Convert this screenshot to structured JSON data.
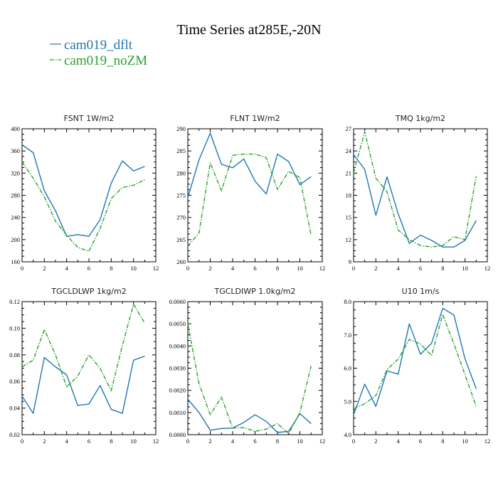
{
  "figure": {
    "title": "Time Series at285E,-20N",
    "legend": [
      {
        "label": "cam019_dflt",
        "color": "#1f77b4",
        "dash": "solid"
      },
      {
        "label": "cam019_noZM",
        "color": "#2ca02c",
        "dash": "dashdot"
      }
    ]
  },
  "chart_data": [
    {
      "type": "line",
      "title": "FSNT   1W/m2",
      "x": [
        0,
        1,
        2,
        3,
        4,
        5,
        6,
        7,
        8,
        9,
        10,
        11
      ],
      "xlim": [
        0,
        12
      ],
      "xticks": [
        0,
        2,
        4,
        6,
        8,
        10,
        12
      ],
      "ylim": [
        160,
        400
      ],
      "yticks": [
        160,
        200,
        240,
        280,
        320,
        360,
        400
      ],
      "ytick_labels": [
        "160",
        "200",
        "240",
        "280",
        "320",
        "360",
        "400"
      ],
      "series": [
        {
          "name": "cam019_dflt",
          "values": [
            371,
            357,
            288,
            252,
            206,
            209,
            206,
            236,
            302,
            342,
            324,
            332
          ]
        },
        {
          "name": "cam019_noZM",
          "values": [
            340,
            311,
            277,
            233,
            208,
            186,
            179,
            220,
            274,
            294,
            298,
            308
          ]
        }
      ]
    },
    {
      "type": "line",
      "title": "FLNT   1W/m2",
      "x": [
        0,
        1,
        2,
        3,
        4,
        5,
        6,
        7,
        8,
        9,
        10,
        11
      ],
      "xlim": [
        0,
        12
      ],
      "xticks": [
        0,
        2,
        4,
        6,
        8,
        10,
        12
      ],
      "ylim": [
        260,
        290
      ],
      "yticks": [
        260,
        265,
        270,
        275,
        280,
        285,
        290
      ],
      "ytick_labels": [
        "260",
        "265",
        "270",
        "275",
        "280",
        "285",
        "290"
      ],
      "series": [
        {
          "name": "cam019_dflt",
          "values": [
            274.5,
            283,
            289,
            282,
            281.2,
            283.2,
            278.2,
            275.3,
            284.3,
            282.6,
            277.4,
            279.2
          ]
        },
        {
          "name": "cam019_noZM",
          "values": [
            263.5,
            266.5,
            282.3,
            276,
            284,
            284.3,
            284.3,
            283.5,
            276.3,
            280.4,
            279,
            266
          ]
        }
      ]
    },
    {
      "type": "line",
      "title": "TMQ   1kg/m2",
      "x": [
        0,
        1,
        2,
        3,
        4,
        5,
        6,
        7,
        8,
        9,
        10,
        11
      ],
      "xlim": [
        0,
        12
      ],
      "xticks": [
        0,
        2,
        4,
        6,
        8,
        10,
        12
      ],
      "ylim": [
        9,
        27
      ],
      "yticks": [
        9,
        12,
        15,
        18,
        21,
        24,
        27
      ],
      "ytick_labels": [
        "9",
        "12",
        "15",
        "18",
        "21",
        "24",
        "27"
      ],
      "series": [
        {
          "name": "cam019_dflt",
          "values": [
            23.5,
            21.5,
            15.3,
            20.5,
            15.5,
            11.5,
            12.6,
            11.9,
            11.0,
            11.0,
            11.9,
            14.6
          ]
        },
        {
          "name": "cam019_noZM",
          "values": [
            21,
            26.6,
            20.3,
            18.5,
            13.3,
            12,
            11.2,
            11.0,
            11.2,
            12.4,
            12.0,
            20.6
          ]
        }
      ]
    },
    {
      "type": "line",
      "title": "TGCLDLWP   1kg/m2",
      "x": [
        0,
        1,
        2,
        3,
        4,
        5,
        6,
        7,
        8,
        9,
        10,
        11
      ],
      "xlim": [
        0,
        12
      ],
      "xticks": [
        0,
        2,
        4,
        6,
        8,
        10,
        12
      ],
      "ylim": [
        0.02,
        0.12
      ],
      "yticks": [
        0.02,
        0.04,
        0.06,
        0.08,
        0.1,
        0.12
      ],
      "ytick_labels": [
        "0.02",
        "0.04",
        "0.06",
        "0.08",
        "0.10",
        "0.12"
      ],
      "series": [
        {
          "name": "cam019_dflt",
          "values": [
            0.049,
            0.036,
            0.078,
            0.071,
            0.065,
            0.042,
            0.043,
            0.057,
            0.039,
            0.036,
            0.076,
            0.079
          ]
        },
        {
          "name": "cam019_noZM",
          "values": [
            0.071,
            0.076,
            0.099,
            0.08,
            0.056,
            0.064,
            0.08,
            0.07,
            0.053,
            0.087,
            0.118,
            0.104
          ]
        }
      ]
    },
    {
      "type": "line",
      "title": "TGCLDIWP   1.0kg/m2",
      "x": [
        0,
        1,
        2,
        3,
        4,
        5,
        6,
        7,
        8,
        9,
        10,
        11
      ],
      "xlim": [
        0,
        12
      ],
      "xticks": [
        0,
        2,
        4,
        6,
        8,
        10,
        12
      ],
      "ylim": [
        0,
        0.006
      ],
      "yticks": [
        0,
        0.001,
        0.002,
        0.003,
        0.004,
        0.005,
        0.006
      ],
      "ytick_labels": [
        "0.0000",
        "0.0010",
        "0.0020",
        "0.0030",
        "0.0040",
        "0.0050",
        "0.0060"
      ],
      "series": [
        {
          "name": "cam019_dflt",
          "values": [
            0.0016,
            0.001,
            0.0002,
            0.00028,
            0.0003,
            0.00055,
            0.0009,
            0.0006,
            0.0001,
            0.00015,
            0.00095,
            0.0005
          ]
        },
        {
          "name": "cam019_noZM",
          "values": [
            0.005,
            0.0023,
            0.0009,
            0.0017,
            0.0003,
            0.00032,
            0.00015,
            0.00025,
            0.0005,
            5e-05,
            0.001,
            0.0031
          ]
        }
      ]
    },
    {
      "type": "line",
      "title": "U10   1m/s",
      "x": [
        0,
        1,
        2,
        3,
        4,
        5,
        6,
        7,
        8,
        9,
        10,
        11
      ],
      "xlim": [
        0,
        12
      ],
      "xticks": [
        0,
        2,
        4,
        6,
        8,
        10,
        12
      ],
      "ylim": [
        4,
        8
      ],
      "yticks": [
        4,
        5,
        6,
        7,
        8
      ],
      "ytick_labels": [
        "4.0",
        "5.0",
        "6.0",
        "7.0",
        "8.0"
      ],
      "series": [
        {
          "name": "cam019_dflt",
          "values": [
            4.6,
            5.52,
            4.85,
            5.92,
            5.82,
            7.33,
            6.42,
            6.75,
            7.8,
            7.6,
            6.28,
            5.38
          ]
        },
        {
          "name": "cam019_noZM",
          "values": [
            4.78,
            4.93,
            5.18,
            5.96,
            6.27,
            6.86,
            6.73,
            6.38,
            7.62,
            6.73,
            5.8,
            4.85
          ]
        }
      ]
    }
  ]
}
